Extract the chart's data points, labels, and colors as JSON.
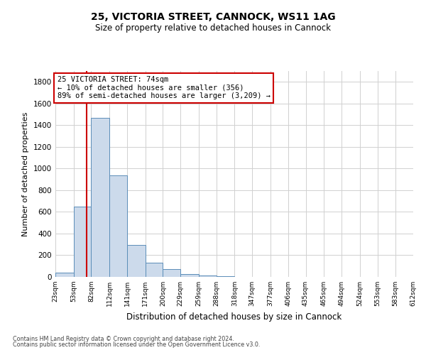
{
  "title1": "25, VICTORIA STREET, CANNOCK, WS11 1AG",
  "title2": "Size of property relative to detached houses in Cannock",
  "xlabel": "Distribution of detached houses by size in Cannock",
  "ylabel": "Number of detached properties",
  "bin_edges": [
    23,
    53,
    82,
    112,
    141,
    171,
    200,
    229,
    259,
    288,
    318,
    347,
    377,
    406,
    435,
    465,
    494,
    524,
    553,
    583,
    612
  ],
  "bar_heights": [
    40,
    650,
    1470,
    940,
    295,
    130,
    70,
    25,
    10,
    5,
    3,
    2,
    1,
    0,
    0,
    0,
    0,
    0,
    0,
    0
  ],
  "bar_facecolor": "#ccdaeb",
  "bar_edgecolor": "#5b8db8",
  "grid_color": "#d0d0d0",
  "vline_x": 74,
  "vline_color": "#cc0000",
  "annotation_text": "25 VICTORIA STREET: 74sqm\n← 10% of detached houses are smaller (356)\n89% of semi-detached houses are larger (3,209) →",
  "annotation_box_edgecolor": "#cc0000",
  "annotation_box_facecolor": "#ffffff",
  "ylim": [
    0,
    1900
  ],
  "yticks": [
    0,
    200,
    400,
    600,
    800,
    1000,
    1200,
    1400,
    1600,
    1800
  ],
  "footer1": "Contains HM Land Registry data © Crown copyright and database right 2024.",
  "footer2": "Contains public sector information licensed under the Open Government Licence v3.0.",
  "bg_color": "#ffffff",
  "tick_labels": [
    "23sqm",
    "53sqm",
    "82sqm",
    "112sqm",
    "141sqm",
    "171sqm",
    "200sqm",
    "229sqm",
    "259sqm",
    "288sqm",
    "318sqm",
    "347sqm",
    "377sqm",
    "406sqm",
    "435sqm",
    "465sqm",
    "494sqm",
    "524sqm",
    "553sqm",
    "583sqm",
    "612sqm"
  ]
}
